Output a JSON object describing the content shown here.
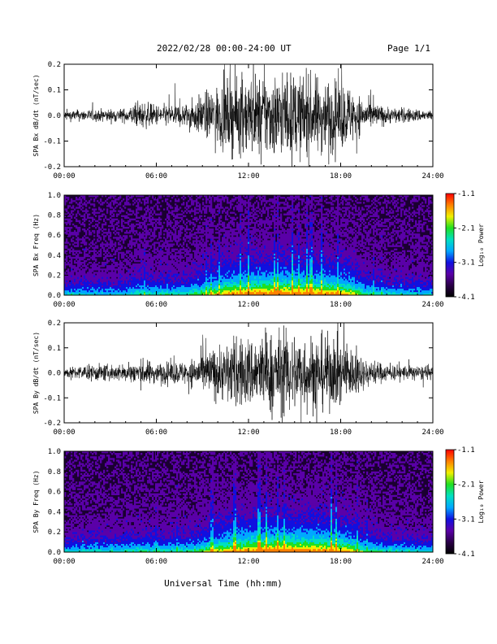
{
  "header": {
    "title": "2022/02/28  00:00-24:00 UT",
    "page": "Page 1/1"
  },
  "xlabel": "Universal Time (hh:mm)",
  "x_ticks": [
    "00:00",
    "06:00",
    "12:00",
    "18:00",
    "24:00"
  ],
  "colormap": [
    "#000000",
    "#2a0048",
    "#5a00a8",
    "#1010e0",
    "#00a8ff",
    "#00e0c0",
    "#20e020",
    "#f0f000",
    "#ff8000",
    "#ff0000"
  ],
  "chart_data": [
    {
      "type": "line",
      "ylabel": "SPA Bx dB/dt (nT/sec)",
      "ylim": [
        -0.2,
        0.2
      ],
      "y_ticks": [
        "-0.2",
        "-0.1",
        "0.0",
        "0.1",
        "0.2"
      ],
      "x_ticks": [
        "00:00",
        "06:00",
        "12:00",
        "18:00",
        "24:00"
      ],
      "envelope_hours": [
        0,
        4,
        5,
        6,
        8,
        9.5,
        11,
        14,
        17,
        18.5,
        19.5,
        21,
        24
      ],
      "envelope_amplitude": [
        0.03,
        0.04,
        0.08,
        0.06,
        0.07,
        0.15,
        0.22,
        0.25,
        0.22,
        0.18,
        0.09,
        0.05,
        0.03
      ]
    },
    {
      "type": "heatmap",
      "ylabel": "SPA Bx Freq (Hz)",
      "ylim": [
        0.0,
        1.0
      ],
      "y_ticks": [
        "0.0",
        "0.2",
        "0.4",
        "0.6",
        "0.8",
        "1.0"
      ],
      "x_ticks": [
        "00:00",
        "06:00",
        "12:00",
        "18:00",
        "24:00"
      ],
      "colorbar_label": "Log₁₀ Power",
      "colorbar_ticks": [
        "-1.1",
        "-2.1",
        "-3.1",
        "-4.1"
      ],
      "zlim": [
        -4.1,
        -1.1
      ]
    },
    {
      "type": "line",
      "ylabel": "SPA By dB/dt (nT/sec)",
      "ylim": [
        -0.2,
        0.2
      ],
      "y_ticks": [
        "-0.2",
        "-0.1",
        "0.0",
        "0.1",
        "0.2"
      ],
      "x_ticks": [
        "00:00",
        "06:00",
        "12:00",
        "18:00",
        "24:00"
      ],
      "envelope_hours": [
        0,
        2,
        4,
        5,
        6,
        8,
        9.5,
        11,
        14,
        17,
        18.5,
        19.5,
        21,
        24
      ],
      "envelope_amplitude": [
        0.03,
        0.05,
        0.05,
        0.08,
        0.06,
        0.07,
        0.14,
        0.2,
        0.25,
        0.22,
        0.18,
        0.09,
        0.05,
        0.04
      ]
    },
    {
      "type": "heatmap",
      "ylabel": "SPA By Freq (Hz)",
      "ylim": [
        0.0,
        1.0
      ],
      "y_ticks": [
        "0.0",
        "0.2",
        "0.4",
        "0.6",
        "0.8",
        "1.0"
      ],
      "x_ticks": [
        "00:00",
        "06:00",
        "12:00",
        "18:00",
        "24:00"
      ],
      "colorbar_label": "Log₁₀ Power",
      "colorbar_ticks": [
        "-1.1",
        "-2.1",
        "-3.1",
        "-4.1"
      ],
      "zlim": [
        -4.1,
        -1.1
      ]
    }
  ]
}
